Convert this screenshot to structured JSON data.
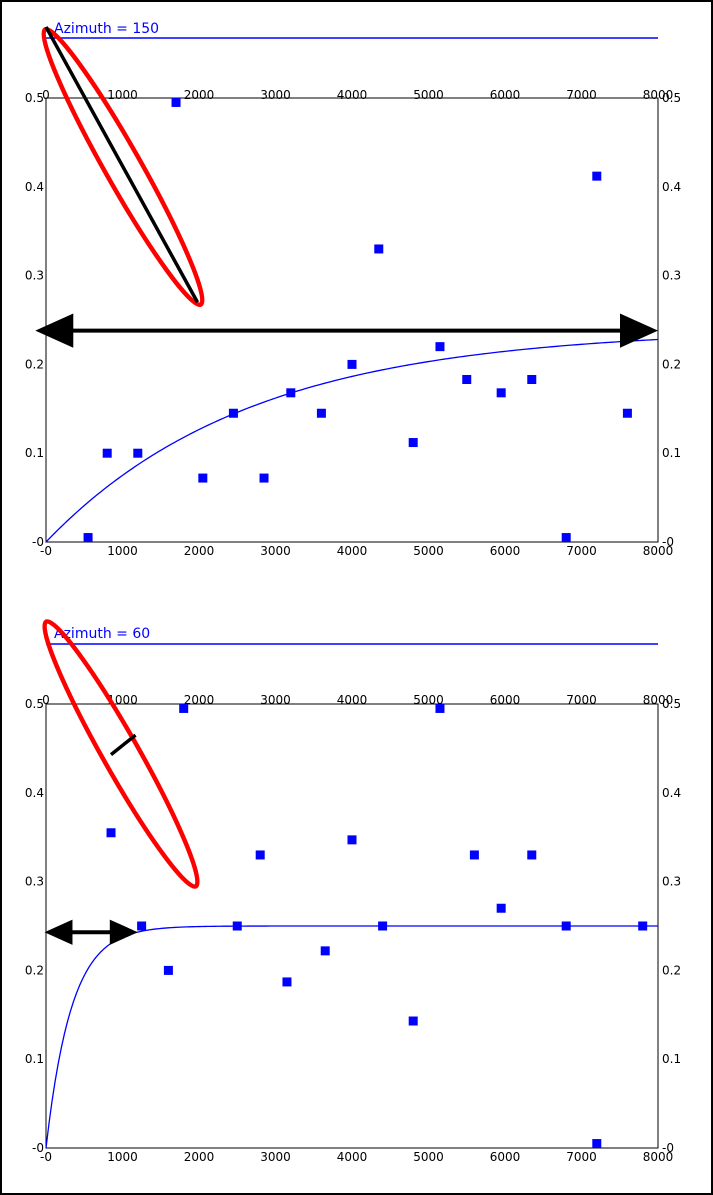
{
  "chart_data": [
    {
      "type": "scatter",
      "title": "Azimuth = 150",
      "xlabel": "",
      "ylabel": "",
      "xlim": [
        0,
        8000
      ],
      "ylim": [
        0,
        0.5
      ],
      "x_ticks": [
        "0",
        "1000",
        "2000",
        "3000",
        "4000",
        "5000",
        "6000",
        "7000",
        "8000"
      ],
      "x_bottom_ticks": [
        "-0",
        "1000",
        "2000",
        "3000",
        "4000",
        "5000",
        "6000",
        "7000",
        "8000"
      ],
      "y_ticks": [
        "-0",
        "0.1",
        "0.2",
        "0.3",
        "0.4",
        "0.5"
      ],
      "grid": false,
      "legend": "none",
      "point_color": "#0000ff",
      "series": [
        {
          "x": [
            550,
            800,
            1200,
            1700,
            2050,
            2450,
            2850,
            3200,
            3600,
            4000,
            4350,
            4800,
            5150,
            5500,
            5950,
            6350,
            6800,
            7200,
            7600
          ],
          "y": [
            0.005,
            0.1,
            0.1,
            0.495,
            0.072,
            0.145,
            0.072,
            0.168,
            0.145,
            0.2,
            0.33,
            0.112,
            0.22,
            0.183,
            0.168,
            0.183,
            0.005,
            0.412,
            0.145
          ]
        }
      ],
      "fit_curve": {
        "model": "exponential",
        "sill": 0.24,
        "range": 8000,
        "color": "#0000ff"
      },
      "annotations": [
        {
          "shape": "ellipse",
          "color": "#ff0000"
        },
        {
          "shape": "line",
          "from": [
            0,
            0.58
          ],
          "to": [
            1980,
            0.27
          ],
          "color": "#000000"
        },
        {
          "shape": "double-arrow",
          "from": [
            -140,
            0.238
          ],
          "to": [
            8000,
            0.238
          ],
          "color": "#000000"
        }
      ]
    },
    {
      "type": "scatter",
      "title": "Azimuth = 60",
      "xlabel": "",
      "ylabel": "",
      "xlim": [
        0,
        8000
      ],
      "ylim": [
        0,
        0.5
      ],
      "x_ticks": [
        "0",
        "1000",
        "2000",
        "3000",
        "4000",
        "5000",
        "6000",
        "7000",
        "8000"
      ],
      "x_bottom_ticks": [
        "-0",
        "1000",
        "2000",
        "3000",
        "4000",
        "5000",
        "6000",
        "7000",
        "8000"
      ],
      "y_ticks": [
        "-0",
        "0.1",
        "0.2",
        "0.3",
        "0.4",
        "0.5"
      ],
      "grid": false,
      "legend": "none",
      "point_color": "#0000ff",
      "series": [
        {
          "x": [
            850,
            1250,
            1600,
            1800,
            2500,
            2800,
            3150,
            3650,
            4000,
            4400,
            4800,
            5150,
            5600,
            5950,
            6350,
            6800,
            7200,
            7800
          ],
          "y": [
            0.355,
            0.25,
            0.2,
            0.495,
            0.25,
            0.33,
            0.187,
            0.222,
            0.347,
            0.25,
            0.143,
            0.495,
            0.33,
            0.27,
            0.33,
            0.25,
            0.005,
            0.25
          ]
        }
      ],
      "fit_curve": {
        "model": "exponential",
        "sill": 0.25,
        "range": 1000,
        "color": "#0000ff"
      },
      "annotations": [
        {
          "shape": "ellipse",
          "color": "#ff0000"
        },
        {
          "shape": "line",
          "from": [
            850,
            0.443
          ],
          "to": [
            1170,
            0.465
          ],
          "color": "#000000"
        },
        {
          "shape": "double-arrow",
          "from": [
            -20,
            0.243
          ],
          "to": [
            1200,
            0.243
          ],
          "color": "#000000"
        }
      ]
    }
  ]
}
